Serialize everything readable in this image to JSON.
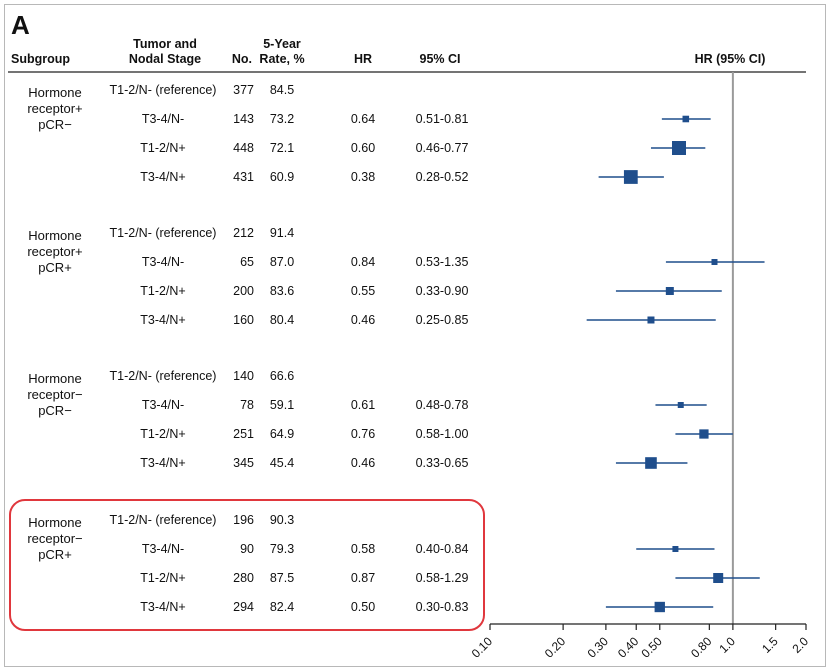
{
  "panel_label": "A",
  "headers": {
    "subgroup": "Subgroup",
    "stage": [
      "Tumor and",
      "Nodal Stage"
    ],
    "no": "No.",
    "rate": [
      "5-Year",
      "Rate, %"
    ],
    "hr": "HR",
    "ci": "95% CI",
    "plot": "HR (95% CI)"
  },
  "colors": {
    "marker": "#1f4e8c",
    "reference_line": "#9a9a9a",
    "highlight": "#e0373d"
  },
  "chart_data": {
    "type": "forest",
    "title": "",
    "xlabel": "",
    "x_scale": "log",
    "xlim": [
      0.1,
      2.0
    ],
    "ticks": [
      0.1,
      0.2,
      0.3,
      0.4,
      0.5,
      0.8,
      1.0,
      1.5,
      2.0
    ],
    "tick_labels": [
      "0.10",
      "0.20",
      "0.30",
      "0.40",
      "0.50",
      "0.80",
      "1.0",
      "1.5",
      "2.0"
    ],
    "reference_value": 1.0,
    "groups": [
      {
        "subgroup": [
          "Hormone",
          "receptor+",
          "pCR−"
        ],
        "rows": [
          {
            "stage": "T1-2/N- (reference)",
            "n": "377",
            "rate": "84.5",
            "hr": "",
            "ci": "",
            "hr_value": null,
            "ci_low": null,
            "ci_high": null
          },
          {
            "stage": "T3-4/N-",
            "n": "143",
            "rate": "73.2",
            "hr": "0.64",
            "ci": "0.51-0.81",
            "hr_value": 0.64,
            "ci_low": 0.51,
            "ci_high": 0.81
          },
          {
            "stage": "T1-2/N+",
            "n": "448",
            "rate": "72.1",
            "hr": "0.60",
            "ci": "0.46-0.77",
            "hr_value": 0.6,
            "ci_low": 0.46,
            "ci_high": 0.77
          },
          {
            "stage": "T3-4/N+",
            "n": "431",
            "rate": "60.9",
            "hr": "0.38",
            "ci": "0.28-0.52",
            "hr_value": 0.38,
            "ci_low": 0.28,
            "ci_high": 0.52
          }
        ]
      },
      {
        "subgroup": [
          "Hormone",
          "receptor+",
          "pCR+"
        ],
        "rows": [
          {
            "stage": "T1-2/N- (reference)",
            "n": "212",
            "rate": "91.4",
            "hr": "",
            "ci": "",
            "hr_value": null,
            "ci_low": null,
            "ci_high": null
          },
          {
            "stage": "T3-4/N-",
            "n": "65",
            "rate": "87.0",
            "hr": "0.84",
            "ci": "0.53-1.35",
            "hr_value": 0.84,
            "ci_low": 0.53,
            "ci_high": 1.35
          },
          {
            "stage": "T1-2/N+",
            "n": "200",
            "rate": "83.6",
            "hr": "0.55",
            "ci": "0.33-0.90",
            "hr_value": 0.55,
            "ci_low": 0.33,
            "ci_high": 0.9
          },
          {
            "stage": "T3-4/N+",
            "n": "160",
            "rate": "80.4",
            "hr": "0.46",
            "ci": "0.25-0.85",
            "hr_value": 0.46,
            "ci_low": 0.25,
            "ci_high": 0.85
          }
        ]
      },
      {
        "subgroup": [
          "Hormone",
          "receptor−",
          "pCR−"
        ],
        "rows": [
          {
            "stage": "T1-2/N- (reference)",
            "n": "140",
            "rate": "66.6",
            "hr": "",
            "ci": "",
            "hr_value": null,
            "ci_low": null,
            "ci_high": null
          },
          {
            "stage": "T3-4/N-",
            "n": "78",
            "rate": "59.1",
            "hr": "0.61",
            "ci": "0.48-0.78",
            "hr_value": 0.61,
            "ci_low": 0.48,
            "ci_high": 0.78
          },
          {
            "stage": "T1-2/N+",
            "n": "251",
            "rate": "64.9",
            "hr": "0.76",
            "ci": "0.58-1.00",
            "hr_value": 0.76,
            "ci_low": 0.58,
            "ci_high": 1.0
          },
          {
            "stage": "T3-4/N+",
            "n": "345",
            "rate": "45.4",
            "hr": "0.46",
            "ci": "0.33-0.65",
            "hr_value": 0.46,
            "ci_low": 0.33,
            "ci_high": 0.65
          }
        ]
      },
      {
        "subgroup": [
          "Hormone",
          "receptor−",
          "pCR+"
        ],
        "highlighted": true,
        "rows": [
          {
            "stage": "T1-2/N- (reference)",
            "n": "196",
            "rate": "90.3",
            "hr": "",
            "ci": "",
            "hr_value": null,
            "ci_low": null,
            "ci_high": null
          },
          {
            "stage": "T3-4/N-",
            "n": "90",
            "rate": "79.3",
            "hr": "0.58",
            "ci": "0.40-0.84",
            "hr_value": 0.58,
            "ci_low": 0.4,
            "ci_high": 0.84
          },
          {
            "stage": "T1-2/N+",
            "n": "280",
            "rate": "87.5",
            "hr": "0.87",
            "ci": "0.58-1.29",
            "hr_value": 0.87,
            "ci_low": 0.58,
            "ci_high": 1.29
          },
          {
            "stage": "T3-4/N+",
            "n": "294",
            "rate": "82.4",
            "hr": "0.50",
            "ci": "0.30-0.83",
            "hr_value": 0.5,
            "ci_low": 0.3,
            "ci_high": 0.83
          }
        ]
      }
    ]
  }
}
